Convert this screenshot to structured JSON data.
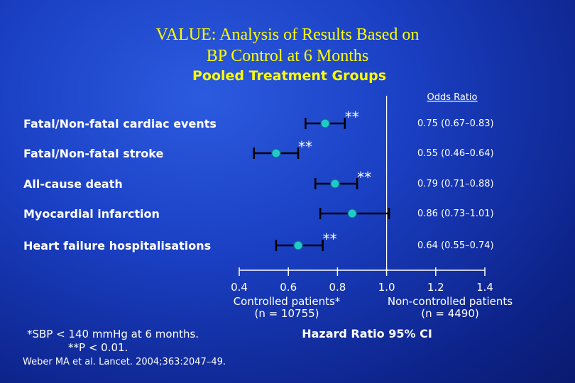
{
  "title_line1": "VALUE: Analysis of Results Based on",
  "title_line2": "BP Control at 6 Months",
  "subtitle": "Pooled Treatment Groups",
  "odds_ratio_header": "Odds Ratio",
  "footnote_line1": "*SBP < 140 mmHg at 6 months.",
  "footnote_line2": "**P < 0.01.",
  "citation": "Weber MA et al. Lancet. 2004;363:2047–49.",
  "colors": {
    "marker": "#22c9c9",
    "text": "#ffffff",
    "title": "#ffff00"
  },
  "chart_data": {
    "type": "forest",
    "x_label": "Hazard Ratio 95% CI",
    "xlim": [
      0.4,
      1.4
    ],
    "reference_line": 1.0,
    "x_ticks": [
      0.4,
      0.6,
      0.8,
      1.0,
      1.2,
      1.4
    ],
    "x_tick_labels": [
      "0.4",
      "0.6",
      "0.8",
      "1.0",
      "1.2",
      "1.4"
    ],
    "left_group_label": [
      "Controlled patients*",
      "(n = 10755)"
    ],
    "right_group_label": [
      "Non-controlled patients",
      "(n = 4490)"
    ],
    "rows": [
      {
        "label": "Fatal/Non-fatal cardiac events",
        "estimate": 0.75,
        "lower": 0.67,
        "upper": 0.83,
        "or_text": "0.75 (0.67–0.83)",
        "significance": "**"
      },
      {
        "label": "Fatal/Non-fatal stroke",
        "estimate": 0.55,
        "lower": 0.46,
        "upper": 0.64,
        "or_text": "0.55 (0.46–0.64)",
        "significance": "**"
      },
      {
        "label": "All-cause death",
        "estimate": 0.79,
        "lower": 0.71,
        "upper": 0.88,
        "or_text": "0.79 (0.71–0.88)",
        "significance": "**"
      },
      {
        "label": "Myocardial infarction",
        "estimate": 0.86,
        "lower": 0.73,
        "upper": 1.01,
        "or_text": "0.86 (0.73–1.01)",
        "significance": ""
      },
      {
        "label": "Heart failure hospitalisations",
        "estimate": 0.64,
        "lower": 0.55,
        "upper": 0.74,
        "or_text": "0.64 (0.55–0.74)",
        "significance": "**"
      }
    ]
  }
}
